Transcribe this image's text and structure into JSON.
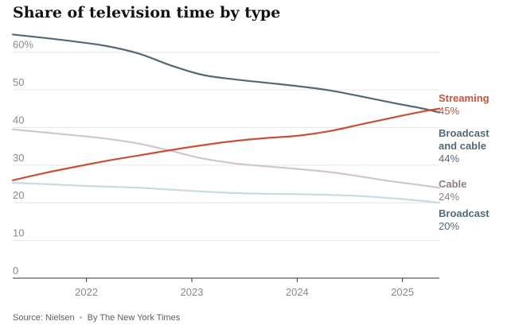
{
  "chart_data": {
    "type": "line",
    "title": "Share of television time by type",
    "xlabel": "",
    "ylabel": "",
    "ylim": [
      0,
      65
    ],
    "xlim": [
      2021.3,
      2025.35
    ],
    "yticks": [
      {
        "value": 60,
        "label": "60%"
      },
      {
        "value": 50,
        "label": "50"
      },
      {
        "value": 40,
        "label": "40"
      },
      {
        "value": 30,
        "label": "30"
      },
      {
        "value": 20,
        "label": "20"
      },
      {
        "value": 10,
        "label": "10"
      },
      {
        "value": 0,
        "label": "0"
      }
    ],
    "xticks": [
      {
        "value": 2022,
        "label": "2022"
      },
      {
        "value": 2023,
        "label": "2023"
      },
      {
        "value": 2024,
        "label": "2024"
      },
      {
        "value": 2025,
        "label": "2025"
      }
    ],
    "grid": true,
    "series": [
      {
        "name": "Broadcast and cable",
        "label_lines": [
          "Broadcast",
          "and cable"
        ],
        "end_label": "44%",
        "color": "#536a76",
        "x": [
          2021.3,
          2021.6,
          2021.9,
          2022.2,
          2022.5,
          2022.8,
          2023.1,
          2023.4,
          2023.7,
          2024.0,
          2024.3,
          2024.6,
          2024.9,
          2025.2,
          2025.35
        ],
        "y": [
          64.7,
          63.8,
          62.8,
          61.6,
          59.6,
          56.5,
          54.0,
          52.8,
          51.9,
          51.0,
          49.9,
          48.3,
          46.6,
          45.0,
          44.0
        ]
      },
      {
        "name": "Streaming",
        "label_lines": [
          "Streaming"
        ],
        "end_label": "45%",
        "color": "#c9513a",
        "x": [
          2021.3,
          2021.6,
          2021.9,
          2022.2,
          2022.5,
          2022.8,
          2023.1,
          2023.4,
          2023.7,
          2024.0,
          2024.3,
          2024.6,
          2024.9,
          2025.2,
          2025.35
        ],
        "y": [
          26.0,
          27.9,
          29.6,
          31.2,
          32.6,
          34.0,
          35.3,
          36.4,
          37.2,
          37.8,
          39.0,
          40.8,
          42.6,
          44.3,
          45.0
        ]
      },
      {
        "name": "Cable",
        "label_lines": [
          "Cable"
        ],
        "end_label": "24%",
        "color": "#d2c6c6",
        "label_color": "#8e7f80",
        "x": [
          2021.3,
          2021.6,
          2021.9,
          2022.2,
          2022.5,
          2022.8,
          2023.1,
          2023.4,
          2023.7,
          2024.0,
          2024.3,
          2024.6,
          2024.9,
          2025.2,
          2025.35
        ],
        "y": [
          39.5,
          38.7,
          37.9,
          37.0,
          35.7,
          33.8,
          31.8,
          30.5,
          29.7,
          29.0,
          28.2,
          27.0,
          25.7,
          24.6,
          24.0
        ]
      },
      {
        "name": "Broadcast",
        "label_lines": [
          "Broadcast"
        ],
        "end_label": "20%",
        "color": "#c9dae1",
        "label_color": "#536a76",
        "x": [
          2021.3,
          2021.6,
          2021.9,
          2022.2,
          2022.5,
          2022.8,
          2023.1,
          2023.4,
          2023.7,
          2024.0,
          2024.3,
          2024.6,
          2024.9,
          2025.2,
          2025.35
        ],
        "y": [
          25.3,
          25.0,
          24.6,
          24.3,
          24.0,
          23.5,
          23.0,
          22.6,
          22.4,
          22.3,
          22.1,
          21.8,
          21.2,
          20.5,
          20.0
        ]
      }
    ]
  },
  "footer": {
    "source": "Source: Nielsen",
    "separator": "•",
    "credit": "By The New York Times"
  }
}
